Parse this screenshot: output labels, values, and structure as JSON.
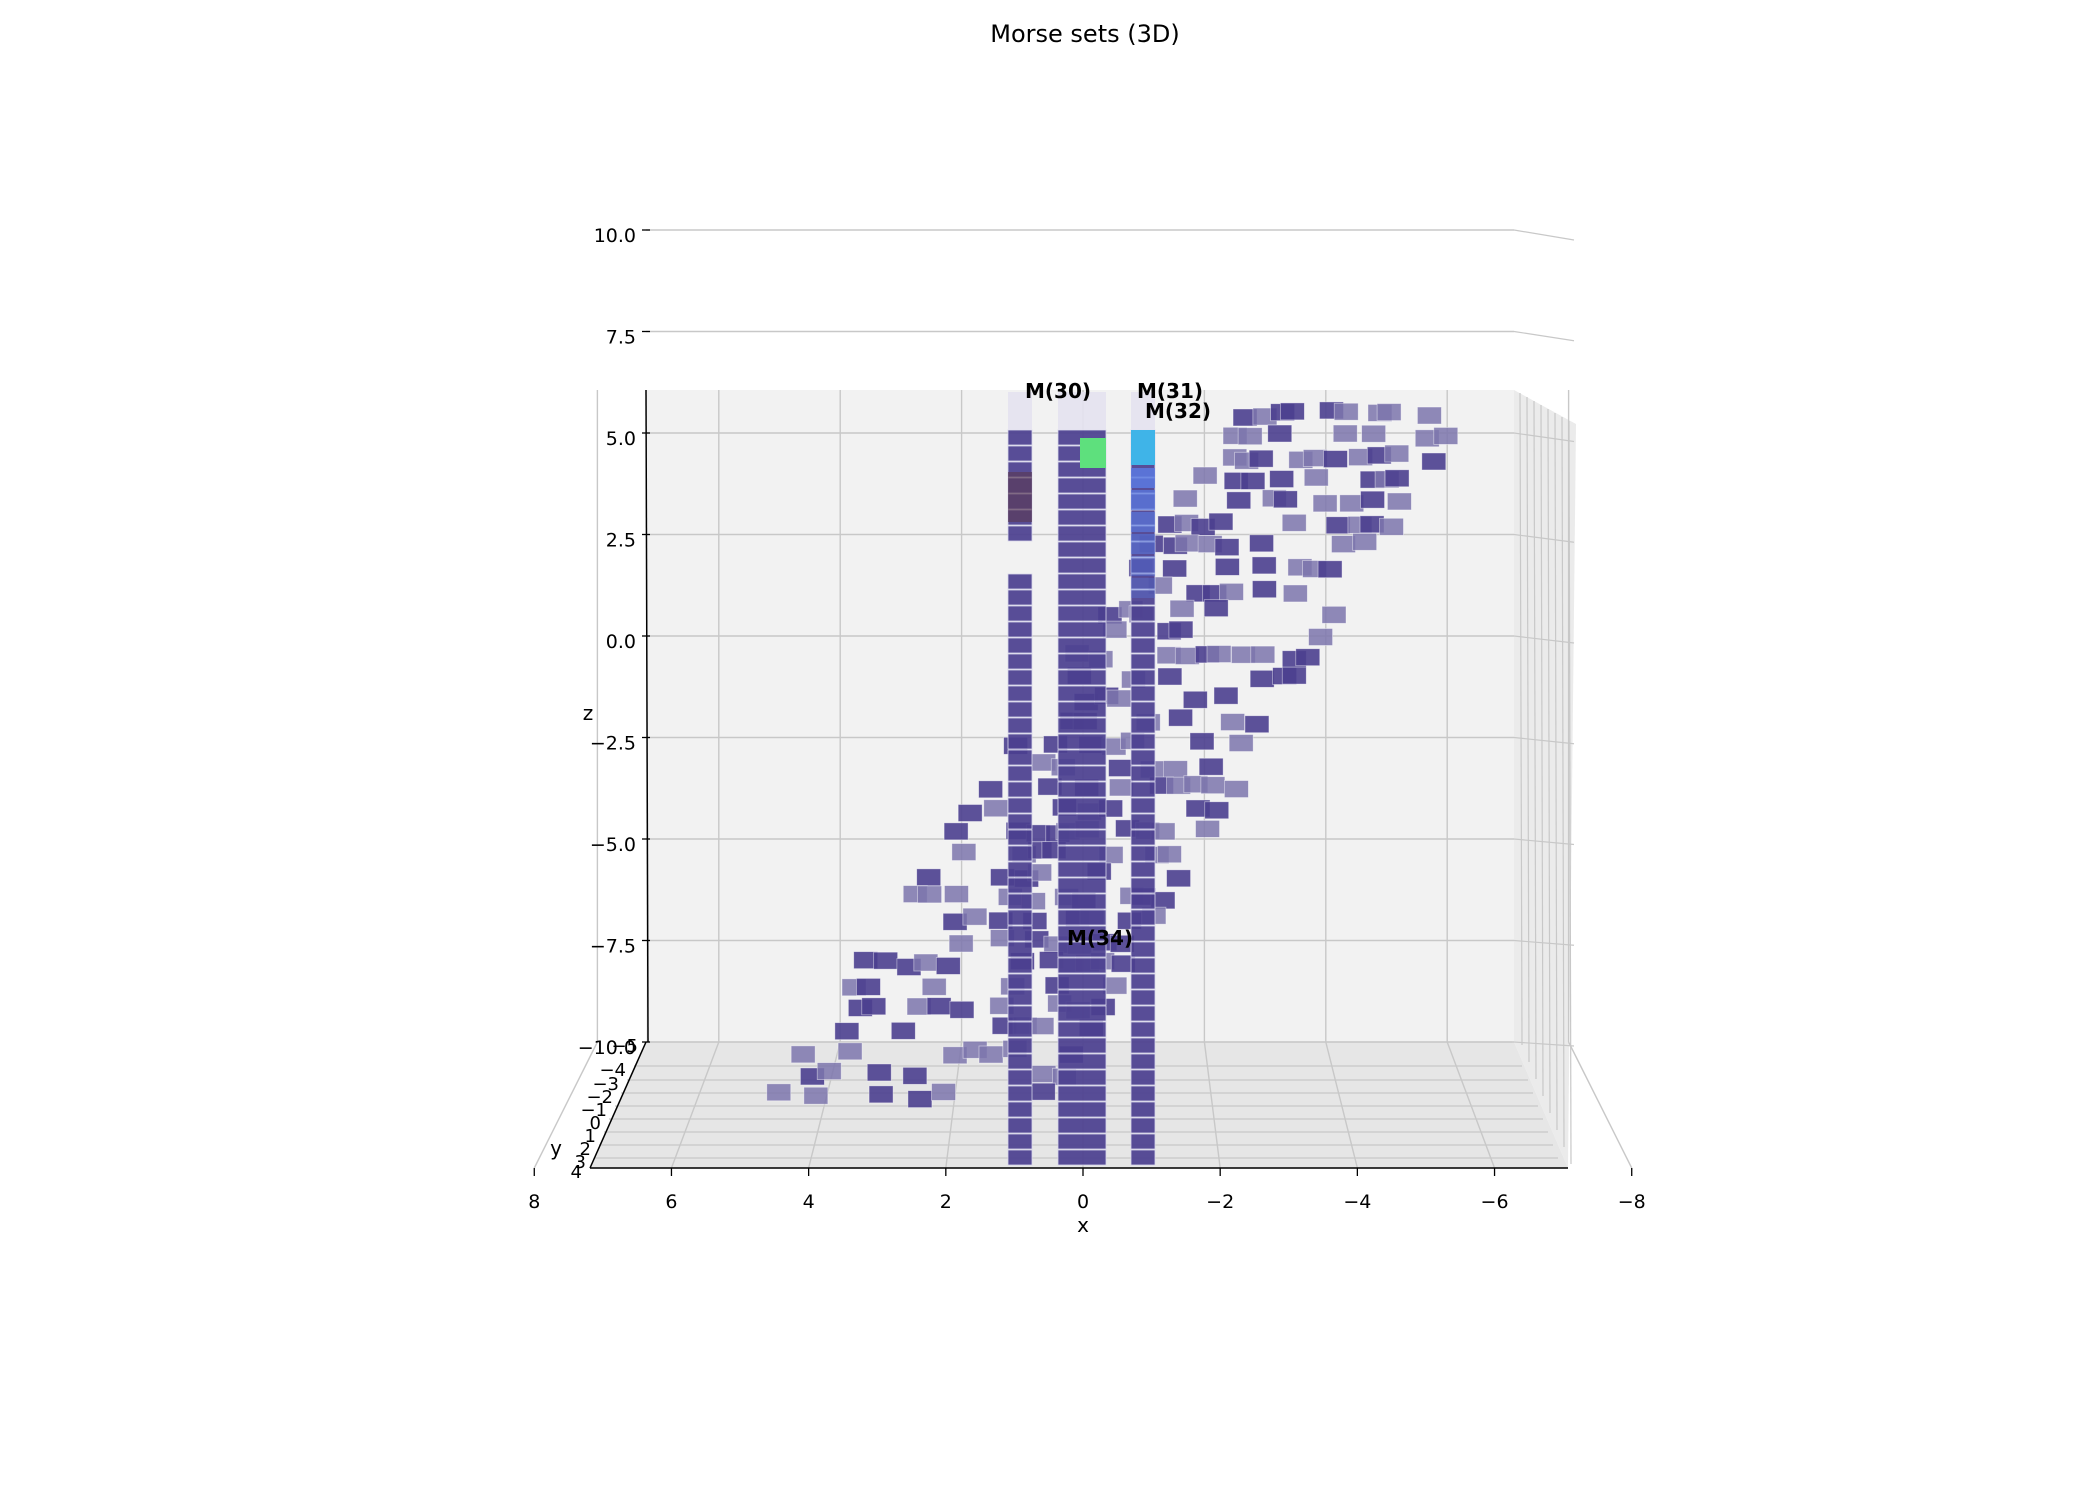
{
  "chart_data": {
    "type": "scatter",
    "projection": "3d",
    "title": "Morse sets (3D)",
    "xlabel": "x",
    "ylabel": "y",
    "zlabel": "z",
    "xlim": [
      8,
      -8
    ],
    "ylim": [
      -5,
      4
    ],
    "zlim": [
      -10,
      10
    ],
    "x_ticks": [
      "8",
      "6",
      "4",
      "2",
      "0",
      "−2",
      "−4",
      "−6",
      "−8"
    ],
    "y_ticks": [
      "−5",
      "−4",
      "−3",
      "−2",
      "−1",
      "0",
      "1",
      "2",
      "3",
      "4"
    ],
    "z_ticks": [
      "10.0",
      "7.5",
      "5.0",
      "2.5",
      "0.0",
      "−2.5",
      "−5.0",
      "−7.5",
      "−10.0"
    ],
    "grid": true,
    "legend": "none",
    "annotations": [
      "M(30)",
      "M(31)",
      "M(32)",
      "M(34)"
    ],
    "colors": {
      "morse_box": "#4b3f8f",
      "morse_box_light": "#7d76ad",
      "highlight_green": "#5ee07d",
      "highlight_cyan": "#3fb4e8",
      "highlight_blue": "#5a7ae0",
      "highlight_dark": "#5a3a5a",
      "pane": "#f2f2f2",
      "grid": "#c8c8c8"
    },
    "columns": [
      {
        "x": 1.0,
        "z_range": [
          -10,
          10
        ]
      },
      {
        "x": 0.0,
        "z_range": [
          -10,
          10
        ]
      },
      {
        "x": -1.0,
        "z_range": [
          -10,
          10
        ]
      }
    ]
  }
}
